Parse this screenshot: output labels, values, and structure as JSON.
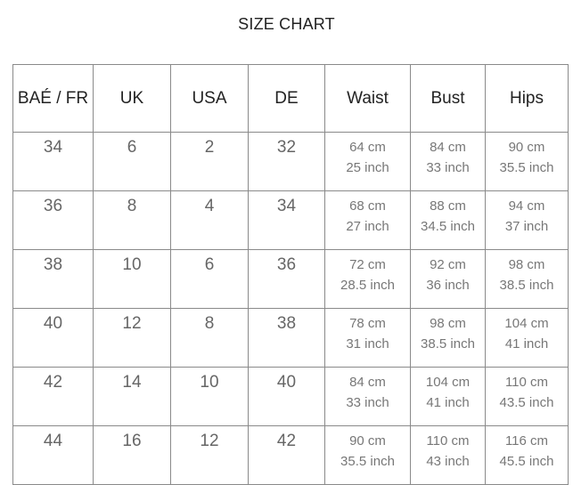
{
  "title": "SIZE CHART",
  "table": {
    "headers": [
      "BAÉ / FR",
      "UK",
      "USA",
      "DE",
      "Waist",
      "Bust",
      "Hips"
    ],
    "rows": [
      {
        "fr": "34",
        "uk": "6",
        "usa": "2",
        "de": "32",
        "waist": [
          "64 cm",
          "25 inch"
        ],
        "bust": [
          "84 cm",
          "33 inch"
        ],
        "hips": [
          "90 cm",
          "35.5 inch"
        ]
      },
      {
        "fr": "36",
        "uk": "8",
        "usa": "4",
        "de": "34",
        "waist": [
          "68 cm",
          "27 inch"
        ],
        "bust": [
          "88 cm",
          "34.5 inch"
        ],
        "hips": [
          "94 cm",
          "37 inch"
        ]
      },
      {
        "fr": "38",
        "uk": "10",
        "usa": "6",
        "de": "36",
        "waist": [
          "72 cm",
          "28.5 inch"
        ],
        "bust": [
          "92 cm",
          "36 inch"
        ],
        "hips": [
          "98 cm",
          "38.5 inch"
        ]
      },
      {
        "fr": "40",
        "uk": "12",
        "usa": "8",
        "de": "38",
        "waist": [
          "78 cm",
          "31 inch"
        ],
        "bust": [
          "98 cm",
          "38.5 inch"
        ],
        "hips": [
          "104 cm",
          "41 inch"
        ]
      },
      {
        "fr": "42",
        "uk": "14",
        "usa": "10",
        "de": "40",
        "waist": [
          "84 cm",
          "33 inch"
        ],
        "bust": [
          "104 cm",
          "41 inch"
        ],
        "hips": [
          "110 cm",
          "43.5 inch"
        ]
      },
      {
        "fr": "44",
        "uk": "16",
        "usa": "12",
        "de": "42",
        "waist": [
          "90 cm",
          "35.5 inch"
        ],
        "bust": [
          "110 cm",
          "43 inch"
        ],
        "hips": [
          "116 cm",
          "45.5 inch"
        ]
      }
    ]
  }
}
